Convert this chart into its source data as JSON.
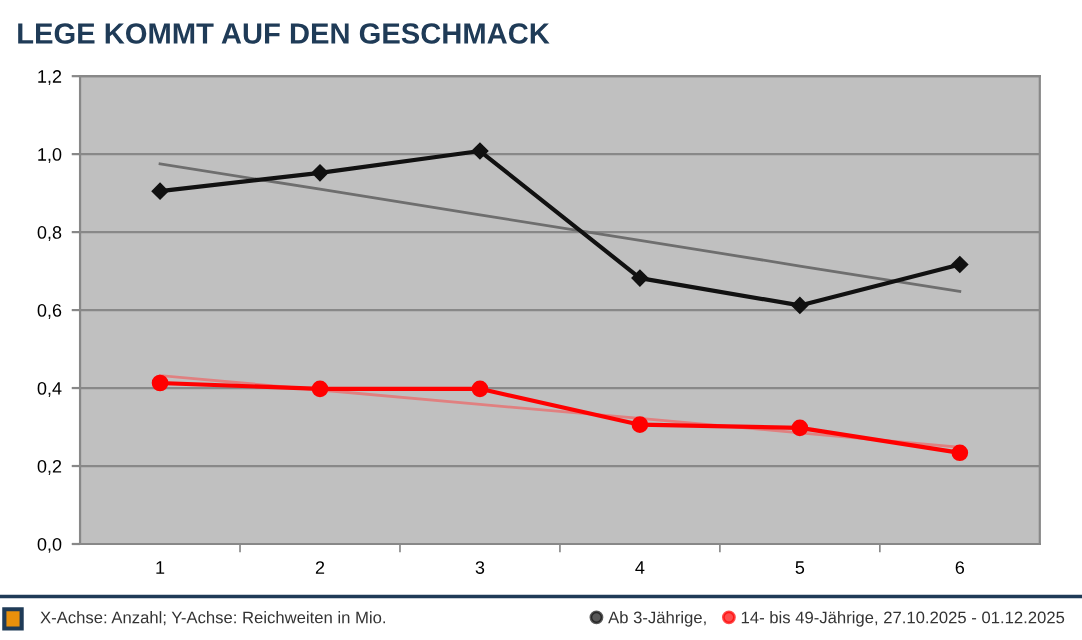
{
  "chart_data": {
    "type": "line",
    "title": "LEGE KOMMT AUF DEN GESCHMACK",
    "categories": [
      "1",
      "2",
      "3",
      "4",
      "5",
      "6"
    ],
    "series": [
      {
        "name": "Ab 3-Jährige,",
        "color": "#111111",
        "marker": "diamond",
        "values": [
          0.905,
          0.952,
          1.008,
          0.682,
          0.612,
          0.717
        ]
      },
      {
        "name": "14- bis 49-Jährige, 27.10.2025 - 01.12.2025",
        "color": "#ff0000",
        "marker": "circle",
        "values": [
          0.413,
          0.398,
          0.398,
          0.306,
          0.298,
          0.234
        ]
      },
      {
        "color": "#6e6e6e",
        "marker": "none",
        "values": [
          0.975,
          0.91,
          0.844,
          0.779,
          0.713,
          0.648
        ]
      },
      {
        "color": "#e08080",
        "marker": "none",
        "values": [
          0.432,
          0.395,
          0.358,
          0.322,
          0.285,
          0.248
        ]
      }
    ],
    "ylim": [
      0,
      1.2
    ],
    "yticks": [
      {
        "value": 0,
        "label": "0,0"
      },
      {
        "value": 0.2,
        "label": "0,2"
      },
      {
        "value": 0.4,
        "label": "0,4"
      },
      {
        "value": 0.6,
        "label": "0,6"
      },
      {
        "value": 0.8,
        "label": "0,8"
      },
      {
        "value": 1.0,
        "label": "1,0"
      },
      {
        "value": 1.2,
        "label": "1,2"
      }
    ],
    "grid": "y",
    "legend": "bottom",
    "annotations": [
      "X-Achse: Anzahl; Y-Achse: Reichweiten in Mio."
    ]
  }
}
